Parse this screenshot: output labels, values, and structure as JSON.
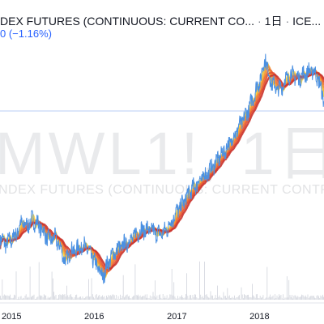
{
  "header": {
    "title": "DEX FUTURES (CONTINUOUS: CURRENT CO...",
    "interval": "1日",
    "exchange": "ICE...",
    "change_text": "0 (−1.16%)"
  },
  "watermark": {
    "symbol": "MWL1!, 1日",
    "description": "NDEX FUTURES (CONTINUOUS: CURRENT CONTRACT IN"
  },
  "chart_data": {
    "type": "line",
    "x_tick_labels": [
      "2015",
      "2016",
      "2017",
      "2018"
    ],
    "series": [
      {
        "values": [
          [
            2014.85,
            49.0
          ],
          [
            2014.92,
            48.3
          ],
          [
            2014.98,
            48.6
          ],
          [
            2015.05,
            49.2
          ],
          [
            2015.12,
            50.5
          ],
          [
            2015.18,
            50.1
          ],
          [
            2015.25,
            50.8
          ],
          [
            2015.32,
            50.3
          ],
          [
            2015.38,
            49.6
          ],
          [
            2015.45,
            48.7
          ],
          [
            2015.52,
            48.9
          ],
          [
            2015.58,
            48.1
          ],
          [
            2015.62,
            47.2
          ],
          [
            2015.66,
            46.4
          ],
          [
            2015.7,
            47.4
          ],
          [
            2015.76,
            47.6
          ],
          [
            2015.82,
            47.9
          ],
          [
            2015.88,
            48.1
          ],
          [
            2015.95,
            47.3
          ],
          [
            2016.02,
            46.1
          ],
          [
            2016.06,
            45.6
          ],
          [
            2016.1,
            44.8
          ],
          [
            2016.14,
            45.7
          ],
          [
            2016.2,
            46.9
          ],
          [
            2016.28,
            47.7
          ],
          [
            2016.35,
            48.1
          ],
          [
            2016.42,
            48.6
          ],
          [
            2016.48,
            49.1
          ],
          [
            2016.55,
            49.6
          ],
          [
            2016.62,
            49.8
          ],
          [
            2016.7,
            49.6
          ],
          [
            2016.78,
            49.3
          ],
          [
            2016.85,
            49.5
          ],
          [
            2016.9,
            50.1
          ],
          [
            2016.95,
            50.9
          ],
          [
            2017.0,
            51.7
          ],
          [
            2017.05,
            52.2
          ],
          [
            2017.1,
            52.9
          ],
          [
            2017.15,
            53.6
          ],
          [
            2017.2,
            54.1
          ],
          [
            2017.25,
            54.6
          ],
          [
            2017.3,
            55.1
          ],
          [
            2017.35,
            55.4
          ],
          [
            2017.4,
            55.9
          ],
          [
            2017.45,
            56.5
          ],
          [
            2017.5,
            57.1
          ],
          [
            2017.55,
            57.6
          ],
          [
            2017.6,
            58.2
          ],
          [
            2017.65,
            58.9
          ],
          [
            2017.7,
            59.6
          ],
          [
            2017.75,
            60.4
          ],
          [
            2017.8,
            61.1
          ],
          [
            2017.85,
            61.9
          ],
          [
            2017.9,
            62.9
          ],
          [
            2017.95,
            64.1
          ],
          [
            2018.0,
            65.1
          ],
          [
            2018.04,
            66.3
          ],
          [
            2018.07,
            67.7
          ],
          [
            2018.1,
            66.1
          ],
          [
            2018.15,
            64.9
          ],
          [
            2018.2,
            64.4
          ],
          [
            2018.25,
            64.3
          ],
          [
            2018.3,
            65.1
          ],
          [
            2018.35,
            65.6
          ],
          [
            2018.4,
            65.9
          ],
          [
            2018.45,
            65.4
          ],
          [
            2018.5,
            65.6
          ],
          [
            2018.55,
            65.9
          ],
          [
            2018.6,
            66.1
          ],
          [
            2018.65,
            66.2
          ],
          [
            2018.7,
            65.6
          ],
          [
            2018.75,
            64.1
          ],
          [
            2018.8,
            62.6
          ]
        ]
      }
    ],
    "xlim": [
      2014.86,
      2018.78
    ],
    "ylim": [
      42.5,
      69.5
    ],
    "grid": "none",
    "legend": "none"
  }
}
